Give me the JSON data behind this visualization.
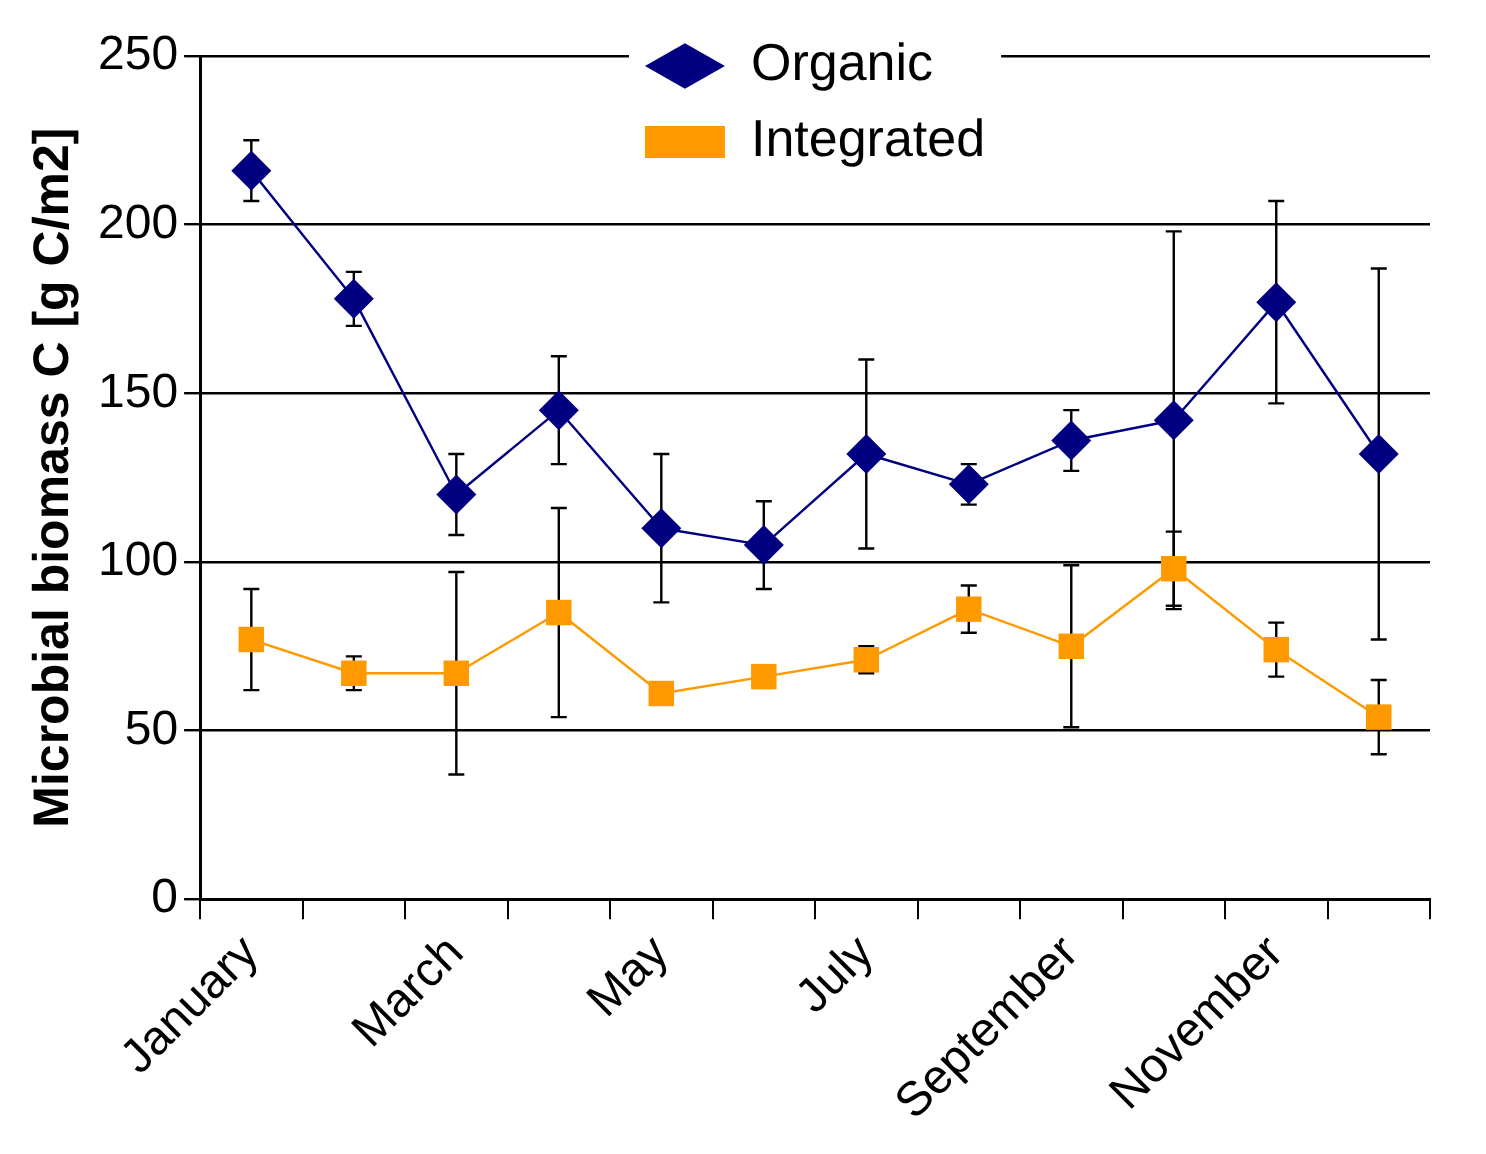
{
  "chart_data": {
    "type": "line",
    "ylabel": "Microbial biomass C [g C/m2]",
    "categories": [
      "January",
      null,
      "March",
      null,
      "May",
      null,
      "July",
      null,
      "September",
      null,
      "November",
      null
    ],
    "series": [
      {
        "name": "Organic",
        "color": "#000080",
        "marker": "diamond",
        "values": [
          216,
          178,
          120,
          145,
          110,
          105,
          132,
          123,
          136,
          142,
          177,
          132
        ],
        "errors": [
          9,
          8,
          12,
          16,
          22,
          13,
          28,
          6,
          9,
          56,
          30,
          55
        ]
      },
      {
        "name": "Integrated",
        "color": "#ff9900",
        "marker": "square",
        "values": [
          77,
          67,
          67,
          85,
          61,
          66,
          71,
          86,
          75,
          98,
          74,
          54
        ],
        "errors": [
          15,
          5,
          30,
          31,
          null,
          null,
          4,
          7,
          24,
          11,
          8,
          11
        ]
      }
    ],
    "ylim": [
      0,
      250
    ],
    "yticks": [
      0,
      50,
      100,
      150,
      200,
      250
    ],
    "grid": "y",
    "legend": "top",
    "line_style": "solid"
  }
}
